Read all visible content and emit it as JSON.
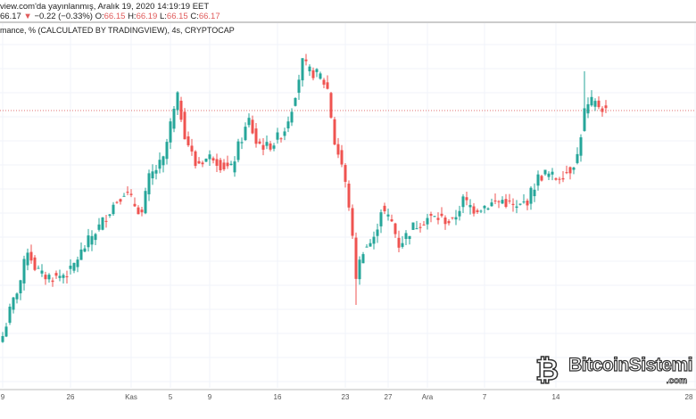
{
  "header": {
    "line1": "view.com'da yayınlanmış, Aralık 19, 2020 14:19:19 EET",
    "last": "66.17",
    "change_icon": "triangle-down-icon",
    "change": "−0.22 (−0.33%)",
    "o_label": "O:",
    "o": "66.15",
    "h_label": "H:",
    "h": "66.19",
    "l_label": "L:",
    "l": "66.15",
    "c_label": "C:",
    "c": "66.17"
  },
  "watermark": {
    "text": "BitcoinSistemi",
    ".com": ".com",
    "domain": ".com"
  },
  "chart_data": {
    "type": "candlestick",
    "title": "mance, % (CALCULATED BY TRADINGVIEW), 4s, CRYPTOCAP",
    "xlabel": "",
    "ylabel": "",
    "ylim": [
      56.8,
      68.7
    ],
    "last_price_line": 66.17,
    "x_ticks": [
      {
        "label": "9",
        "i": 0
      },
      {
        "label": "26",
        "i": 19
      },
      {
        "label": "Kas",
        "i": 36
      },
      {
        "label": "5",
        "i": 47
      },
      {
        "label": "9",
        "i": 58
      },
      {
        "label": "16",
        "i": 77
      },
      {
        "label": "23",
        "i": 96
      },
      {
        "label": "27",
        "i": 108
      },
      {
        "label": "Ara",
        "i": 119
      },
      {
        "label": "7",
        "i": 135
      },
      {
        "label": "14",
        "i": 155
      },
      {
        "label": "28",
        "i": 194
      }
    ],
    "close_path": [
      [
        0,
        58.55
      ],
      [
        2,
        59.39
      ],
      [
        5,
        60.44
      ],
      [
        7,
        61.49
      ],
      [
        9,
        60.89
      ],
      [
        11,
        60.59
      ],
      [
        15,
        60.53
      ],
      [
        19,
        60.74
      ],
      [
        21,
        61.19
      ],
      [
        25,
        61.94
      ],
      [
        27,
        62.24
      ],
      [
        31,
        62.99
      ],
      [
        34,
        63.44
      ],
      [
        37,
        62.99
      ],
      [
        39,
        62.69
      ],
      [
        41,
        63.89
      ],
      [
        45,
        64.49
      ],
      [
        47,
        65.69
      ],
      [
        49,
        66.59
      ],
      [
        51,
        65.39
      ],
      [
        54,
        64.34
      ],
      [
        56,
        64.49
      ],
      [
        59,
        64.64
      ],
      [
        61,
        64.34
      ],
      [
        64,
        64.19
      ],
      [
        66,
        64.94
      ],
      [
        69,
        65.84
      ],
      [
        71,
        65.09
      ],
      [
        74,
        64.94
      ],
      [
        76,
        65.09
      ],
      [
        79,
        65.54
      ],
      [
        81,
        66.29
      ],
      [
        84,
        67.79
      ],
      [
        86,
        67.49
      ],
      [
        89,
        67.34
      ],
      [
        91,
        66.89
      ],
      [
        93,
        65.09
      ],
      [
        95,
        64.34
      ],
      [
        97,
        62.99
      ],
      [
        99,
        60.59
      ],
      [
        101,
        61.49
      ],
      [
        104,
        61.79
      ],
      [
        106,
        62.84
      ],
      [
        109,
        62.39
      ],
      [
        111,
        61.64
      ],
      [
        115,
        62.24
      ],
      [
        119,
        62.54
      ],
      [
        122,
        62.54
      ],
      [
        126,
        62.39
      ],
      [
        129,
        63.14
      ],
      [
        132,
        62.84
      ],
      [
        136,
        62.99
      ],
      [
        140,
        63.14
      ],
      [
        144,
        62.84
      ],
      [
        147,
        63.14
      ],
      [
        150,
        63.89
      ],
      [
        152,
        64.04
      ],
      [
        155,
        63.89
      ],
      [
        159,
        64.19
      ],
      [
        161,
        64.64
      ],
      [
        163,
        66.14
      ],
      [
        165,
        66.44
      ],
      [
        167,
        66.35
      ],
      [
        169,
        66.17
      ]
    ],
    "spikes": [
      {
        "i": 163,
        "high": 67.5
      },
      {
        "i": 99,
        "low": 59.6
      }
    ]
  }
}
